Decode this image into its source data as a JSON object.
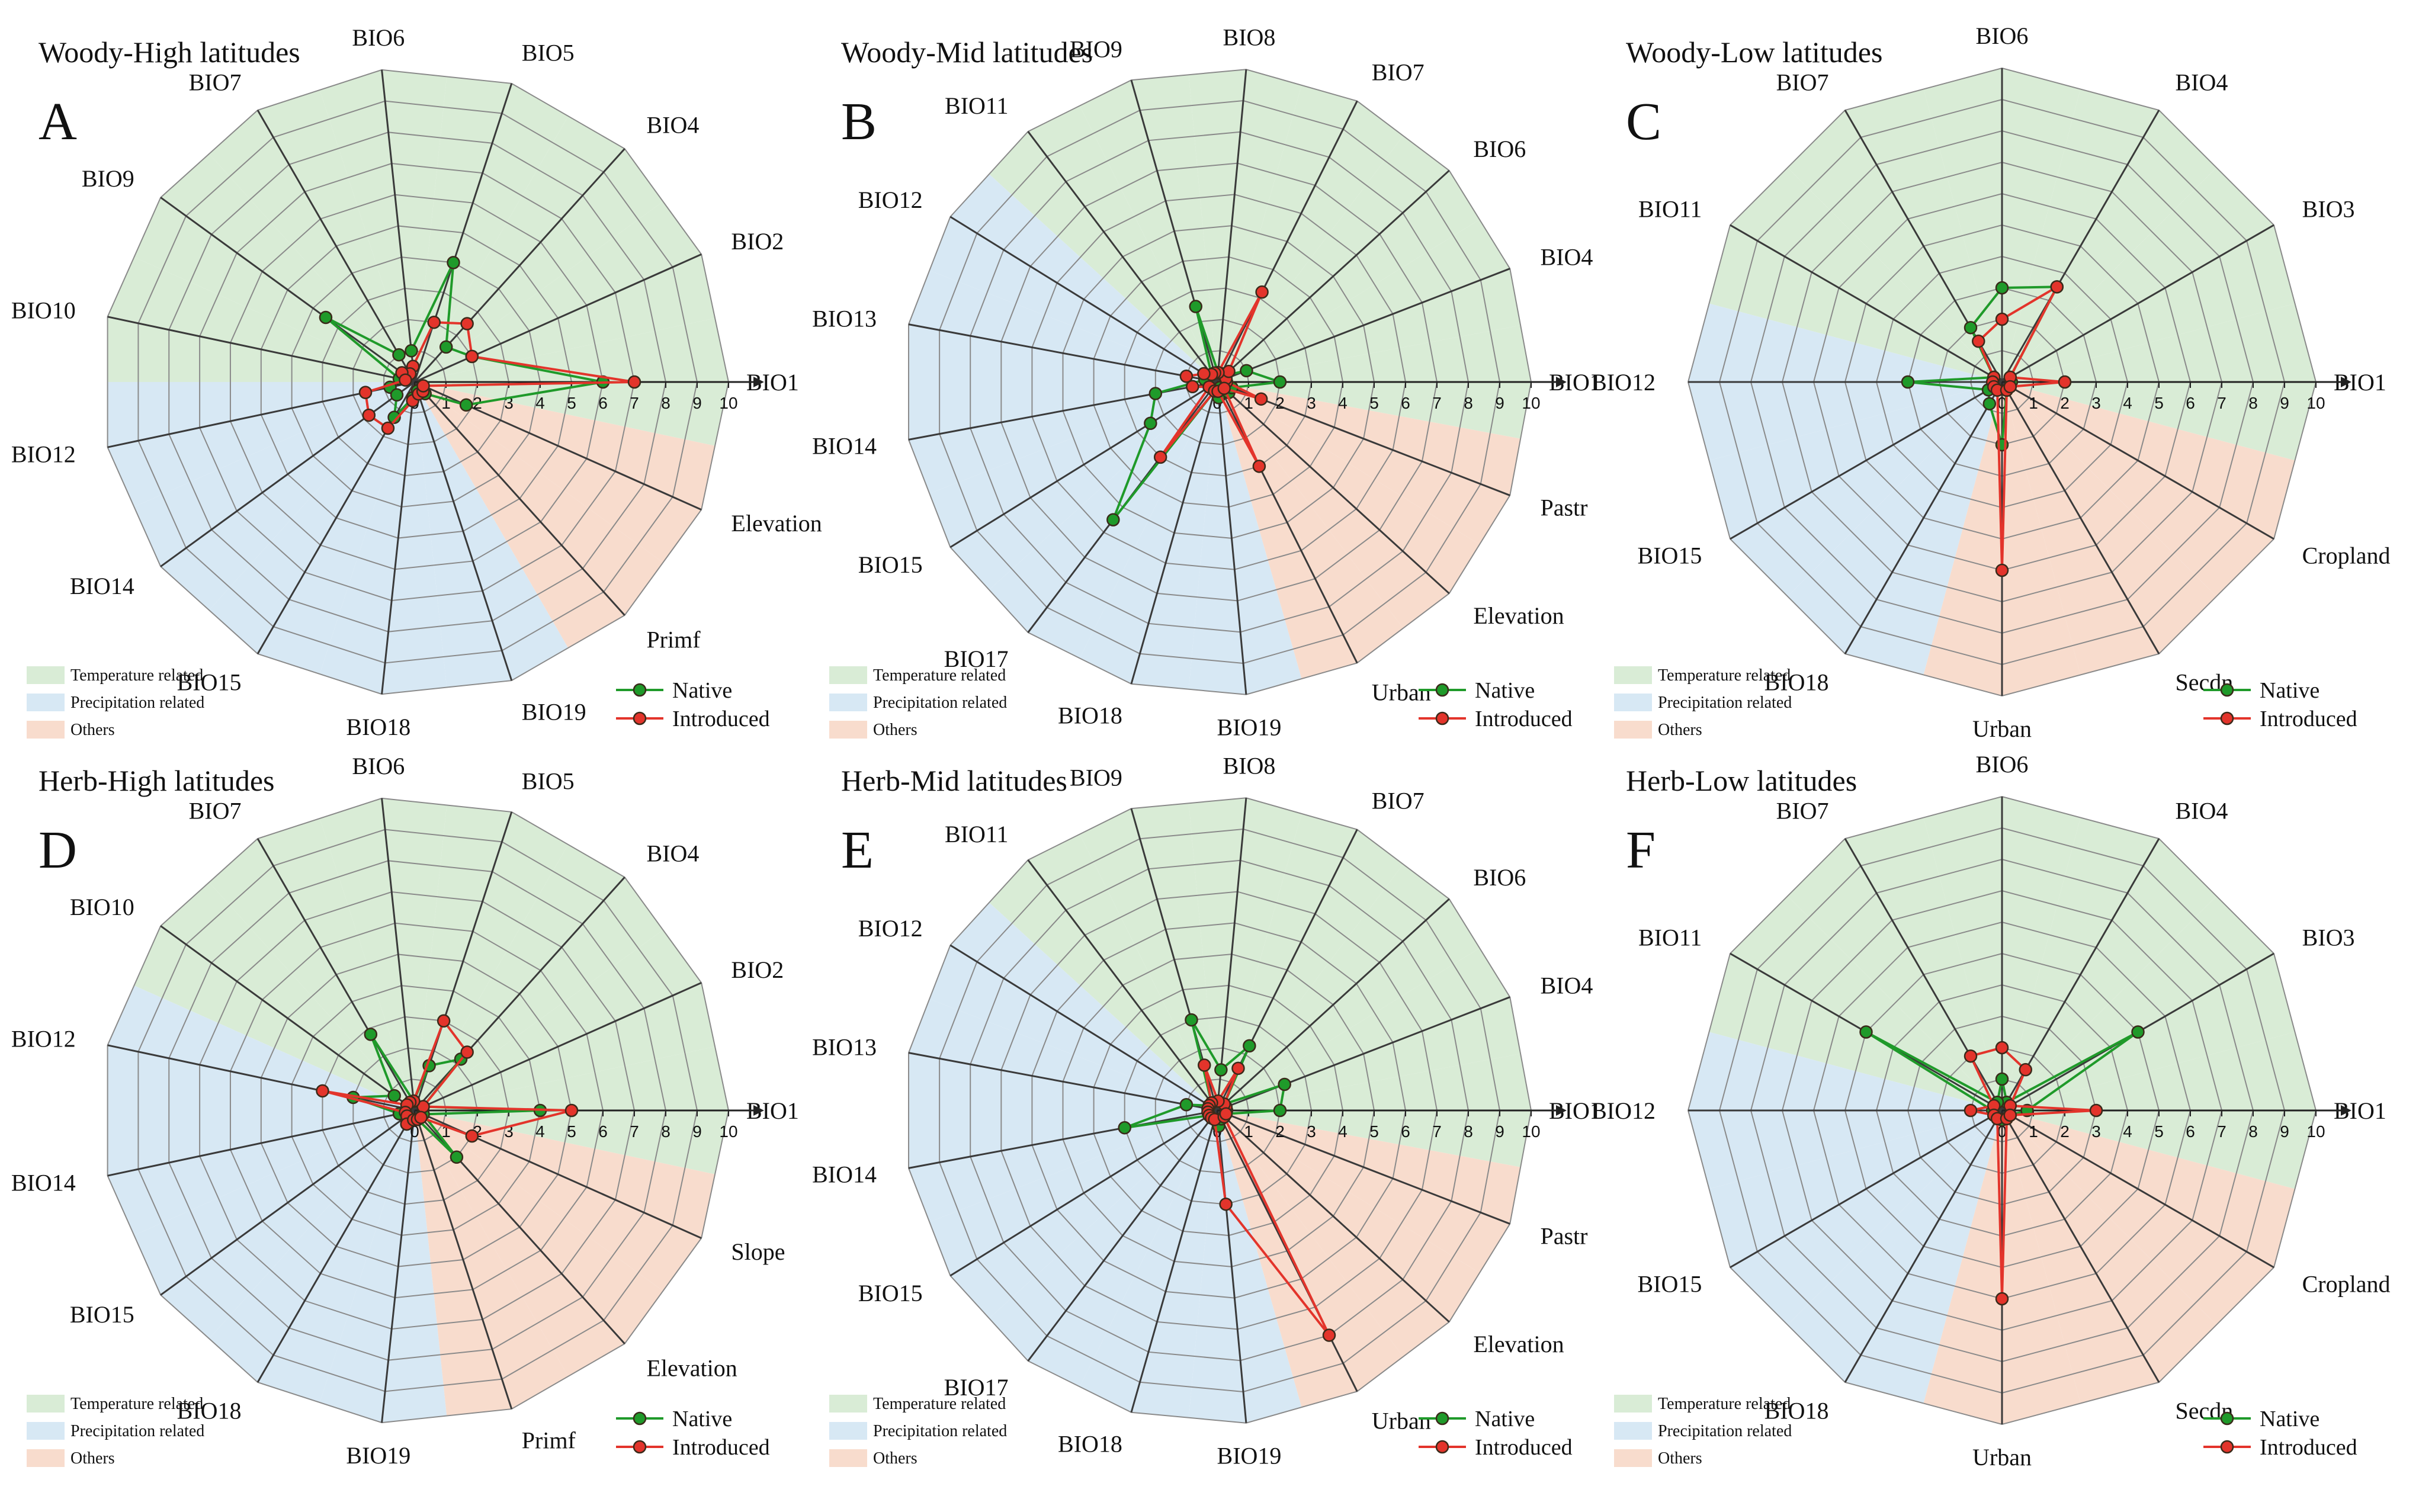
{
  "colors": {
    "temperature": "#d9ecd6",
    "precipitation": "#d7e8f4",
    "others": "#f8dccd",
    "native": "#1f9a2a",
    "introduced": "#e3342b"
  },
  "legend": {
    "categories": [
      "Temperature related",
      "Precipitation related",
      "Others"
    ],
    "series": [
      "Native",
      "Introduced"
    ]
  },
  "chart_data": [
    {
      "type": "radar",
      "letter": "A",
      "title": "Woody-High latitudes",
      "rmax": 10,
      "ticks": [
        0,
        1,
        2,
        3,
        4,
        5,
        6,
        7,
        8,
        9,
        10
      ],
      "axes": [
        "BIO1",
        "BIO2",
        "BIO4",
        "BIO5",
        "BIO6",
        "BIO7",
        "BIO9",
        "BIO10",
        "BIO12",
        "BIO14",
        "BIO15",
        "BIO18",
        "BIO19",
        "Primf",
        "Elevation"
      ],
      "categories": [
        "temperature",
        "temperature",
        "temperature",
        "temperature",
        "temperature",
        "temperature",
        "temperature",
        "temperature",
        "precipitation",
        "precipitation",
        "precipitation",
        "precipitation",
        "precipitation",
        "others",
        "others"
      ],
      "series": [
        {
          "name": "Native",
          "values": [
            6,
            2,
            1.5,
            4,
            1,
            1,
            3.5,
            0.5,
            0.8,
            0.7,
            1.3,
            0.5,
            0.3,
            0.5,
            1.8
          ]
        },
        {
          "name": "Introduced",
          "values": [
            7,
            2,
            2.5,
            2,
            0.5,
            0.3,
            0.5,
            0.3,
            1.6,
            1.8,
            1.7,
            0.6,
            0.4,
            0.4,
            0.3
          ]
        }
      ]
    },
    {
      "type": "radar",
      "letter": "B",
      "title": "Woody-Mid latitudes",
      "rmax": 10,
      "ticks": [
        0,
        1,
        2,
        3,
        4,
        5,
        6,
        7,
        8,
        9,
        10
      ],
      "axes": [
        "BIO1",
        "BIO4",
        "BIO6",
        "BIO7",
        "BIO8",
        "BIO9",
        "BIO11",
        "BIO12",
        "BIO13",
        "BIO14",
        "BIO15",
        "BIO17",
        "BIO18",
        "BIO19",
        "Urban",
        "Elevation",
        "Pastr"
      ],
      "categories": [
        "temperature",
        "temperature",
        "temperature",
        "temperature",
        "temperature",
        "temperature",
        "temperature",
        "precipitation",
        "precipitation",
        "precipitation",
        "precipitation",
        "precipitation",
        "precipitation",
        "precipitation",
        "others",
        "others",
        "others"
      ],
      "series": [
        {
          "name": "Native",
          "values": [
            2,
            1,
            0.3,
            0.3,
            0.3,
            2.5,
            0.3,
            0.5,
            0.4,
            2,
            2.5,
            5.5,
            0.3,
            0.5,
            0.2,
            0.5,
            0.5
          ]
        },
        {
          "name": "Introduced",
          "values": [
            0.3,
            0.3,
            0.5,
            3.2,
            0.3,
            0.3,
            0.3,
            0.5,
            1,
            0.8,
            0.3,
            3,
            0.3,
            0.3,
            3,
            0.3,
            1.5
          ]
        }
      ]
    },
    {
      "type": "radar",
      "letter": "C",
      "title": "Woody-Low latitudes",
      "rmax": 10,
      "ticks": [
        0,
        1,
        2,
        3,
        4,
        5,
        6,
        7,
        8,
        9,
        10
      ],
      "axes": [
        "BIO1",
        "BIO3",
        "BIO4",
        "BIO6",
        "BIO7",
        "BIO11",
        "BIO12",
        "BIO15",
        "BIO18",
        "Urban",
        "Secdn",
        "Cropland"
      ],
      "categories": [
        "temperature",
        "temperature",
        "temperature",
        "temperature",
        "temperature",
        "temperature",
        "precipitation",
        "precipitation",
        "precipitation",
        "others",
        "others",
        "others"
      ],
      "series": [
        {
          "name": "Native",
          "values": [
            0.3,
            0.3,
            3.5,
            3,
            2,
            0.3,
            3,
            0.5,
            0.8,
            2,
            0.3,
            0.3
          ]
        },
        {
          "name": "Introduced",
          "values": [
            2,
            0.3,
            3.5,
            2,
            1.5,
            0.3,
            0.3,
            0.3,
            0.3,
            6,
            0.3,
            0.3
          ]
        }
      ]
    },
    {
      "type": "radar",
      "letter": "D",
      "title": "Herb-High latitudes",
      "rmax": 10,
      "ticks": [
        0,
        1,
        2,
        3,
        4,
        5,
        6,
        7,
        8,
        9,
        10
      ],
      "axes": [
        "BIO1",
        "BIO2",
        "BIO4",
        "BIO5",
        "BIO6",
        "BIO7",
        "BIO10",
        "BIO12",
        "BIO14",
        "BIO15",
        "BIO18",
        "BIO19",
        "Primf",
        "Elevation",
        "Slope"
      ],
      "categories": [
        "temperature",
        "temperature",
        "temperature",
        "temperature",
        "temperature",
        "temperature",
        "temperature",
        "precipitation",
        "precipitation",
        "precipitation",
        "precipitation",
        "precipitation",
        "others",
        "others",
        "others"
      ],
      "series": [
        {
          "name": "Native",
          "values": [
            4,
            0.3,
            2.2,
            1.5,
            0.3,
            2.8,
            0.8,
            2,
            0.5,
            0.3,
            0.5,
            0.3,
            0.3,
            2,
            0.3
          ]
        },
        {
          "name": "Introduced",
          "values": [
            5,
            0.3,
            2.5,
            3,
            0.3,
            0.3,
            0.3,
            3,
            0.3,
            0.3,
            0.5,
            0.3,
            0.3,
            0.3,
            2
          ]
        }
      ]
    },
    {
      "type": "radar",
      "letter": "E",
      "title": "Herb-Mid latitudes",
      "rmax": 10,
      "ticks": [
        0,
        1,
        2,
        3,
        4,
        5,
        6,
        7,
        8,
        9,
        10
      ],
      "axes": [
        "BIO1",
        "BIO4",
        "BIO6",
        "BIO7",
        "BIO8",
        "BIO9",
        "BIO11",
        "BIO12",
        "BIO13",
        "BIO14",
        "BIO15",
        "BIO17",
        "BIO18",
        "BIO19",
        "Urban",
        "Elevation",
        "Pastr"
      ],
      "categories": [
        "temperature",
        "temperature",
        "temperature",
        "temperature",
        "temperature",
        "temperature",
        "temperature",
        "precipitation",
        "precipitation",
        "precipitation",
        "precipitation",
        "precipitation",
        "precipitation",
        "precipitation",
        "others",
        "others",
        "others"
      ],
      "series": [
        {
          "name": "Native",
          "values": [
            2,
            2.3,
            0.3,
            2.3,
            1.3,
            3,
            0.3,
            0.3,
            1,
            3,
            0.3,
            0.3,
            0.3,
            0.5,
            0.3,
            0.3,
            0.3
          ]
        },
        {
          "name": "Introduced",
          "values": [
            0.3,
            0.3,
            0.3,
            1.5,
            0.3,
            1.5,
            0.3,
            0.3,
            0.3,
            0.3,
            0.3,
            0.3,
            0.3,
            3,
            8,
            0.3,
            0.3
          ]
        }
      ]
    },
    {
      "type": "radar",
      "letter": "F",
      "title": "Herb-Low latitudes",
      "rmax": 10,
      "ticks": [
        0,
        1,
        2,
        3,
        4,
        5,
        6,
        7,
        8,
        9,
        10
      ],
      "axes": [
        "BIO1",
        "BIO3",
        "BIO4",
        "BIO6",
        "BIO7",
        "BIO11",
        "BIO12",
        "BIO15",
        "BIO18",
        "Urban",
        "Secdn",
        "Cropland"
      ],
      "categories": [
        "temperature",
        "temperature",
        "temperature",
        "temperature",
        "temperature",
        "temperature",
        "precipitation",
        "precipitation",
        "precipitation",
        "others",
        "others",
        "others"
      ],
      "series": [
        {
          "name": "Native",
          "values": [
            0.8,
            5,
            0.3,
            1,
            0.3,
            5,
            0.3,
            0.3,
            0.3,
            0.3,
            0.3,
            0.3
          ]
        },
        {
          "name": "Introduced",
          "values": [
            3,
            0.3,
            1.5,
            2,
            2,
            0.3,
            1,
            0.3,
            0.3,
            6,
            0.3,
            0.3
          ]
        }
      ]
    }
  ]
}
